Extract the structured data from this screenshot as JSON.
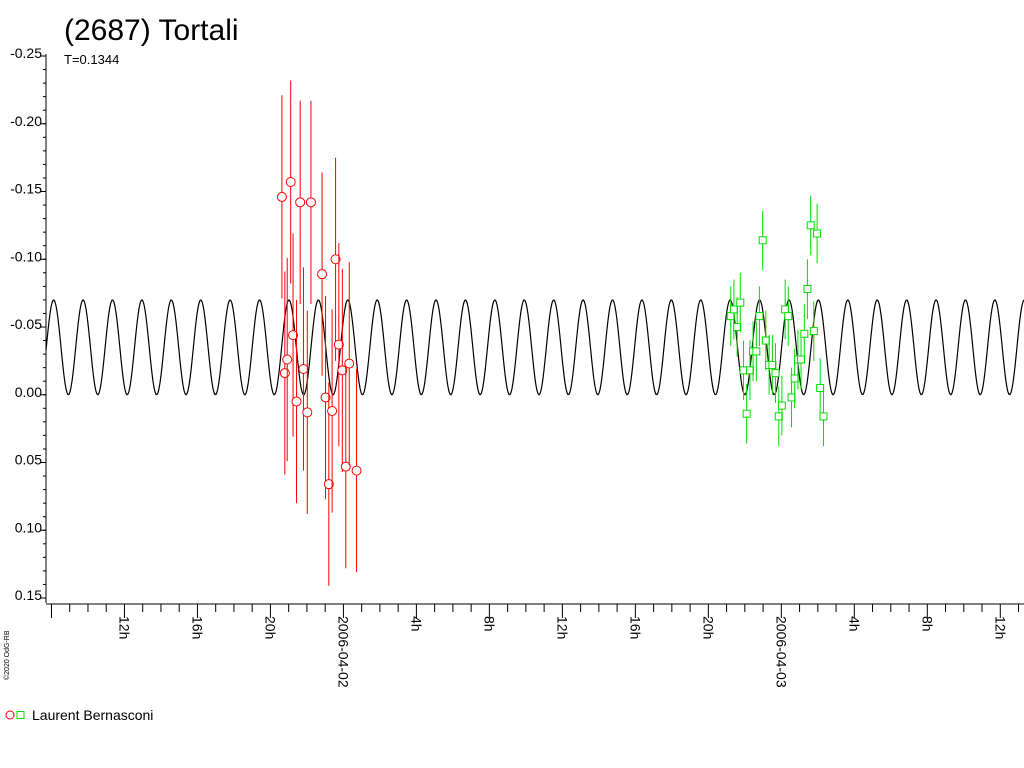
{
  "chart_data": {
    "type": "scatter",
    "title": "(2687) Tortali",
    "subtitle": "T=0.1344",
    "copyright": "©2020 OdG-RB",
    "y_reversed": true,
    "ylim": [
      0.15,
      -0.25
    ],
    "y_ticks": [
      {
        "value": -0.25,
        "label": "-0.25"
      },
      {
        "value": -0.2,
        "label": "-0.20"
      },
      {
        "value": -0.15,
        "label": "-0.15"
      },
      {
        "value": -0.1,
        "label": "-0.10"
      },
      {
        "value": -0.05,
        "label": "-0.05"
      },
      {
        "value": 0.0,
        "label": "0.00"
      },
      {
        "value": 0.05,
        "label": "0.05"
      },
      {
        "value": 0.1,
        "label": "0.10"
      },
      {
        "value": 0.15,
        "label": "0.15"
      }
    ],
    "x_unit": "hours since 2006-04-01 00:00",
    "xlim": [
      7.7,
      61.3
    ],
    "x_ticks": [
      {
        "value": 12,
        "label": "12h"
      },
      {
        "value": 16,
        "label": "16h"
      },
      {
        "value": 20,
        "label": "20h"
      },
      {
        "value": 24,
        "label": "2006-04-02"
      },
      {
        "value": 28,
        "label": "4h"
      },
      {
        "value": 32,
        "label": "8h"
      },
      {
        "value": 36,
        "label": "12h"
      },
      {
        "value": 40,
        "label": "16h"
      },
      {
        "value": 44,
        "label": "20h"
      },
      {
        "value": 48,
        "label": "2006-04-03"
      },
      {
        "value": 52,
        "label": "4h"
      },
      {
        "value": 56,
        "label": "8h"
      },
      {
        "value": 60,
        "label": "12h"
      }
    ],
    "fit_curve": {
      "color": "#000000",
      "period_hours": 1.612,
      "phase_hours": 8.12,
      "mean": -0.035,
      "amplitude": 0.035
    },
    "series": [
      {
        "name": "Laurent Bernasconi",
        "marker": "circle",
        "color": "#ff0000",
        "points": [
          {
            "x": 20.63,
            "y": -0.146,
            "err": 0.075
          },
          {
            "x": 20.79,
            "y": -0.016,
            "err": 0.075
          },
          {
            "x": 20.92,
            "y": -0.026,
            "err": 0.075
          },
          {
            "x": 21.11,
            "y": -0.157,
            "err": 0.075
          },
          {
            "x": 21.24,
            "y": -0.044,
            "err": 0.075
          },
          {
            "x": 21.43,
            "y": 0.005,
            "err": 0.075
          },
          {
            "x": 21.63,
            "y": -0.142,
            "err": 0.075
          },
          {
            "x": 21.81,
            "y": -0.019,
            "err": 0.075
          },
          {
            "x": 22.02,
            "y": 0.013,
            "err": 0.075
          },
          {
            "x": 22.22,
            "y": -0.142,
            "err": 0.075
          },
          {
            "x": 22.83,
            "y": -0.089,
            "err": 0.075
          },
          {
            "x": 23.02,
            "y": 0.002,
            "err": 0.075
          },
          {
            "x": 23.2,
            "y": 0.066,
            "err": 0.075
          },
          {
            "x": 23.38,
            "y": 0.012,
            "err": 0.075
          },
          {
            "x": 23.57,
            "y": -0.1,
            "err": 0.075
          },
          {
            "x": 23.75,
            "y": -0.037,
            "err": 0.075
          },
          {
            "x": 23.94,
            "y": -0.018,
            "err": 0.075
          },
          {
            "x": 24.13,
            "y": 0.053,
            "err": 0.075
          },
          {
            "x": 24.32,
            "y": -0.023,
            "err": 0.075
          },
          {
            "x": 24.72,
            "y": 0.056,
            "err": 0.075
          }
        ]
      },
      {
        "name": "",
        "marker": "square",
        "color": "#00dd00",
        "points": [
          {
            "x": 45.23,
            "y": -0.058,
            "err": 0.022
          },
          {
            "x": 45.4,
            "y": -0.063,
            "err": 0.022
          },
          {
            "x": 45.58,
            "y": -0.05,
            "err": 0.022
          },
          {
            "x": 45.75,
            "y": -0.068,
            "err": 0.022
          },
          {
            "x": 45.93,
            "y": -0.018,
            "err": 0.022
          },
          {
            "x": 46.1,
            "y": 0.014,
            "err": 0.022
          },
          {
            "x": 46.28,
            "y": -0.018,
            "err": 0.022
          },
          {
            "x": 46.45,
            "y": -0.032,
            "err": 0.022
          },
          {
            "x": 46.63,
            "y": -0.032,
            "err": 0.022
          },
          {
            "x": 46.8,
            "y": -0.058,
            "err": 0.022
          },
          {
            "x": 46.98,
            "y": -0.114,
            "err": 0.022
          },
          {
            "x": 47.15,
            "y": -0.04,
            "err": 0.022
          },
          {
            "x": 47.33,
            "y": -0.022,
            "err": 0.022
          },
          {
            "x": 47.51,
            "y": -0.022,
            "err": 0.022
          },
          {
            "x": 47.68,
            "y": -0.016,
            "err": 0.022
          },
          {
            "x": 47.86,
            "y": 0.016,
            "err": 0.022
          },
          {
            "x": 48.03,
            "y": 0.008,
            "err": 0.022
          },
          {
            "x": 48.21,
            "y": -0.063,
            "err": 0.022
          },
          {
            "x": 48.38,
            "y": -0.058,
            "err": 0.022
          },
          {
            "x": 48.56,
            "y": 0.002,
            "err": 0.022
          },
          {
            "x": 48.73,
            "y": -0.012,
            "err": 0.022
          },
          {
            "x": 48.91,
            "y": -0.026,
            "err": 0.022
          },
          {
            "x": 49.08,
            "y": -0.026,
            "err": 0.022
          },
          {
            "x": 49.26,
            "y": -0.045,
            "err": 0.022
          },
          {
            "x": 49.43,
            "y": -0.078,
            "err": 0.022
          },
          {
            "x": 49.61,
            "y": -0.125,
            "err": 0.022
          },
          {
            "x": 49.78,
            "y": -0.047,
            "err": 0.022
          },
          {
            "x": 49.96,
            "y": -0.119,
            "err": 0.022
          },
          {
            "x": 50.13,
            "y": -0.005,
            "err": 0.022
          },
          {
            "x": 50.31,
            "y": 0.016,
            "err": 0.022
          }
        ]
      }
    ]
  }
}
